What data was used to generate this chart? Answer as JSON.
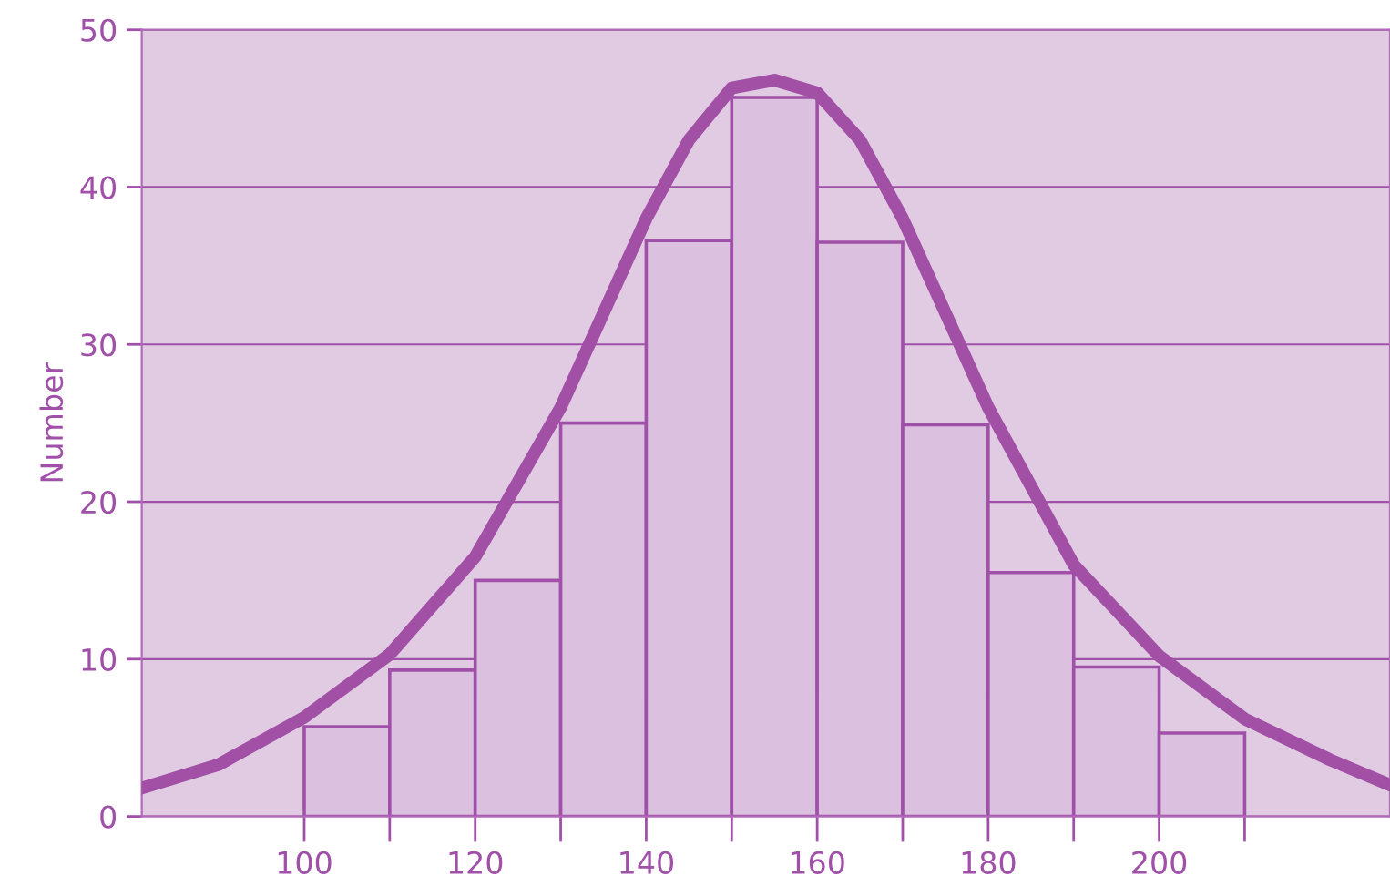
{
  "chart_data": {
    "type": "histogram",
    "ylabel": "Number",
    "xlim": [
      81,
      227
    ],
    "ylim": [
      0,
      50
    ],
    "xticks": [
      100,
      {
        "value": 110,
        "label": null
      },
      120,
      {
        "value": 130,
        "label": null
      },
      140,
      {
        "value": 150,
        "label": null
      },
      160,
      {
        "value": 170,
        "label": null
      },
      180,
      {
        "value": 190,
        "label": null
      },
      200,
      {
        "value": 210,
        "label": null
      }
    ],
    "yticks": [
      0,
      10,
      20,
      30,
      40,
      50
    ],
    "grid": "y",
    "legend": false,
    "series": [
      {
        "color": "#dcc0df",
        "bins": [
          100,
          110,
          120,
          130,
          140,
          150,
          160,
          170,
          180,
          190,
          200,
          210
        ],
        "values": [
          5.7,
          9.3,
          15.0,
          25.0,
          36.6,
          45.7,
          36.5,
          24.9,
          15.5,
          9.5,
          5.3
        ]
      },
      {
        "type": "line",
        "color": "#a24fa6",
        "x": [
          81,
          90,
          100,
          110,
          120,
          130,
          140,
          145,
          150,
          155,
          160,
          165,
          170,
          180,
          190,
          200,
          210,
          220,
          227
        ],
        "values": [
          1.8,
          3.3,
          6.3,
          10.3,
          16.5,
          26,
          38,
          43,
          46.3,
          46.8,
          46,
          43,
          38,
          26,
          16,
          10.2,
          6.2,
          3.6,
          2
        ]
      }
    ]
  }
}
